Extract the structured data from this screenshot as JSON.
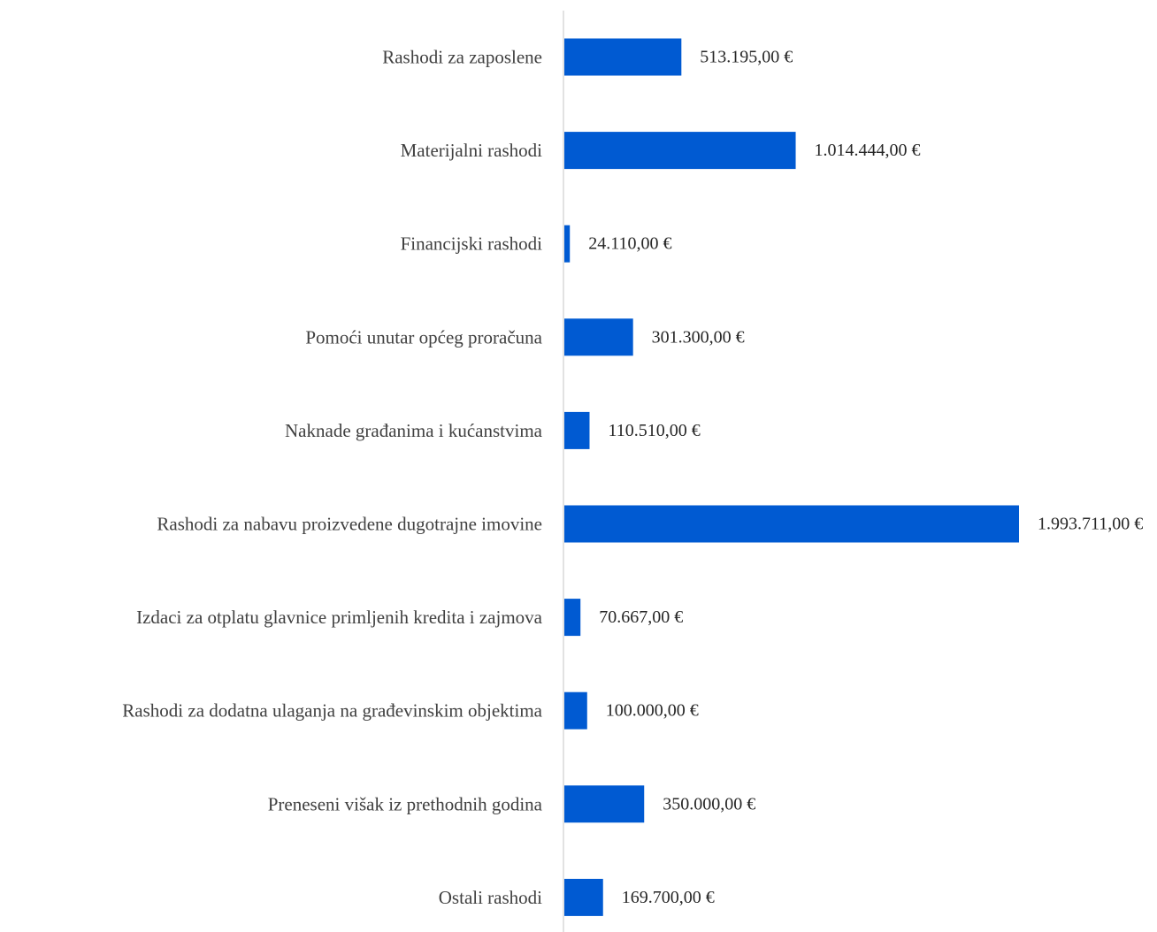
{
  "chart_data": {
    "type": "bar",
    "orientation": "horizontal",
    "categories": [
      "Rashodi za zaposlene",
      "Materijalni rashodi",
      "Financijski rashodi",
      "Pomoći unutar općeg proračuna",
      "Naknade građanima i kućanstvima",
      "Rashodi za nabavu proizvedene dugotrajne imovine",
      "Izdaci za otplatu glavnice primljenih kredita i zajmova",
      "Rashodi za dodatna ulaganja na građevinskim objektima",
      "Preneseni višak iz prethodnih godina",
      "Ostali rashodi"
    ],
    "values": [
      513195,
      1014444,
      24110,
      301300,
      110510,
      1993711,
      70667,
      100000,
      350000,
      169700
    ],
    "value_labels": [
      "513.195,00 €",
      "1.014.444,00 €",
      "24.110,00 €",
      "301.300,00 €",
      "110.510,00 €",
      "1.993.711,00 €",
      "70.667,00 €",
      "100.000,00 €",
      "350.000,00 €",
      "169.700,00 €"
    ],
    "xlim": [
      0,
      1993711
    ],
    "grid": false,
    "legend": "none",
    "bar_color": "#005AD2",
    "axis_color": "#D9D9D9"
  }
}
